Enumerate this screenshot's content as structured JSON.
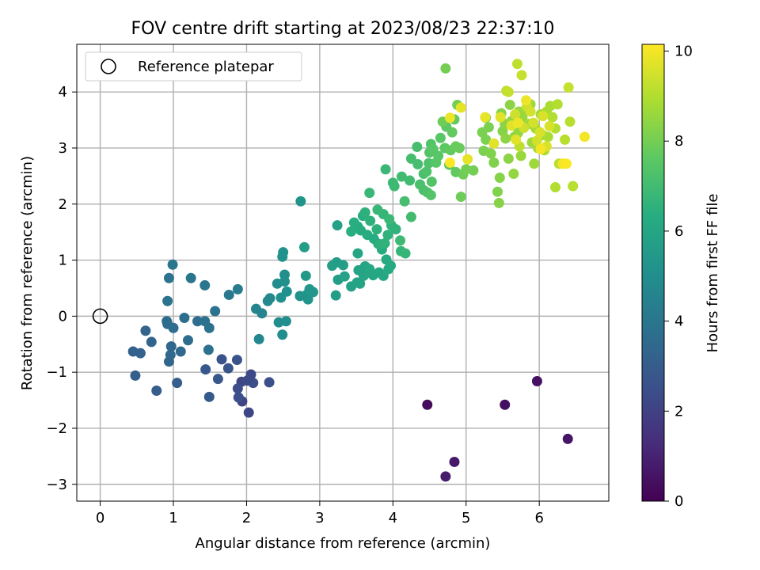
{
  "chart_data": {
    "type": "scatter",
    "title": "FOV centre drift starting at 2023/08/23 22:37:10",
    "xlabel": "Angular distance from reference (arcmin)",
    "ylabel": "Rotation from reference (arcmin)",
    "xlim": [
      -0.32,
      6.95
    ],
    "ylim": [
      -3.3,
      4.85
    ],
    "xticks": [
      0,
      1,
      2,
      3,
      4,
      5,
      6
    ],
    "yticks": [
      -3,
      -2,
      -1,
      0,
      1,
      2,
      3,
      4
    ],
    "grid": true,
    "legend": {
      "position": "top-left",
      "entries": [
        "Reference platepar"
      ]
    },
    "reference_point": {
      "x": 0,
      "y": 0
    },
    "colorbar": {
      "label": "Hours from first FF file",
      "colormap": "viridis",
      "range": [
        0,
        10.15
      ],
      "ticks": [
        0,
        2,
        4,
        6,
        8,
        10
      ]
    },
    "points": [
      [
        4.47,
        -1.58,
        0.3
      ],
      [
        5.53,
        -1.58,
        0.4
      ],
      [
        5.97,
        -1.16,
        0.5
      ],
      [
        6.39,
        -2.19,
        0.6
      ],
      [
        4.84,
        -2.6,
        0.7
      ],
      [
        4.72,
        -2.86,
        0.8
      ],
      [
        1.94,
        -1.52,
        2.1
      ],
      [
        2.03,
        -1.72,
        2.2
      ],
      [
        1.93,
        -1.17,
        2.2
      ],
      [
        2.06,
        -1.04,
        2.3
      ],
      [
        2.09,
        -1.19,
        2.4
      ],
      [
        2.01,
        -1.15,
        2.3
      ],
      [
        1.88,
        -1.29,
        2.4
      ],
      [
        1.89,
        -1.45,
        2.5
      ],
      [
        2.31,
        -1.18,
        2.5
      ],
      [
        1.66,
        -0.77,
        2.6
      ],
      [
        1.87,
        -0.78,
        2.6
      ],
      [
        1.75,
        -0.93,
        2.7
      ],
      [
        1.44,
        -0.95,
        2.8
      ],
      [
        1.61,
        -1.12,
        2.8
      ],
      [
        1.49,
        -1.44,
        2.9
      ],
      [
        0.77,
        -1.33,
        3.0
      ],
      [
        1.05,
        -1.19,
        3.0
      ],
      [
        0.48,
        -1.06,
        3.1
      ],
      [
        0.45,
        -0.63,
        3.2
      ],
      [
        0.55,
        -0.66,
        3.2
      ],
      [
        0.7,
        -0.46,
        3.3
      ],
      [
        0.62,
        -0.26,
        3.3
      ],
      [
        0.94,
        -0.81,
        3.4
      ],
      [
        0.97,
        -0.54,
        3.4
      ],
      [
        0.96,
        -0.69,
        3.5
      ],
      [
        1.1,
        -0.63,
        3.5
      ],
      [
        1.2,
        -0.43,
        3.6
      ],
      [
        0.91,
        -0.09,
        3.6
      ],
      [
        0.92,
        -0.14,
        3.6
      ],
      [
        1.0,
        -0.21,
        3.7
      ],
      [
        1.15,
        -0.03,
        3.7
      ],
      [
        1.33,
        -0.09,
        3.7
      ],
      [
        1.43,
        -0.09,
        3.8
      ],
      [
        1.49,
        -0.21,
        3.8
      ],
      [
        1.48,
        -0.6,
        3.8
      ],
      [
        1.57,
        0.09,
        3.9
      ],
      [
        0.92,
        0.27,
        3.9
      ],
      [
        0.94,
        0.68,
        3.9
      ],
      [
        0.99,
        0.92,
        4.0
      ],
      [
        1.24,
        0.68,
        4.0
      ],
      [
        1.43,
        0.55,
        4.0
      ],
      [
        1.76,
        0.38,
        4.1
      ],
      [
        1.88,
        0.48,
        4.2
      ],
      [
        2.13,
        0.13,
        4.6
      ],
      [
        2.21,
        0.05,
        4.6
      ],
      [
        2.17,
        -0.41,
        4.7
      ],
      [
        2.29,
        0.27,
        4.8
      ],
      [
        2.32,
        0.32,
        4.8
      ],
      [
        2.42,
        0.58,
        4.9
      ],
      [
        2.44,
        -0.11,
        4.9
      ],
      [
        2.49,
        -0.33,
        5.0
      ],
      [
        2.54,
        -0.09,
        5.0
      ],
      [
        2.52,
        0.74,
        5.0
      ],
      [
        2.52,
        0.62,
        5.1
      ],
      [
        2.55,
        0.44,
        5.1
      ],
      [
        2.47,
        0.33,
        5.1
      ],
      [
        2.49,
        1.06,
        5.2
      ],
      [
        2.5,
        1.14,
        5.2
      ],
      [
        2.73,
        0.36,
        5.2
      ],
      [
        2.82,
        0.38,
        5.3
      ],
      [
        2.84,
        0.3,
        5.3
      ],
      [
        2.86,
        0.48,
        5.4
      ],
      [
        2.91,
        0.43,
        5.4
      ],
      [
        2.81,
        0.72,
        5.5
      ],
      [
        2.74,
        2.05,
        5.3
      ],
      [
        2.79,
        1.23,
        5.6
      ],
      [
        3.22,
        0.37,
        5.6
      ],
      [
        3.23,
        0.96,
        5.6
      ],
      [
        3.17,
        0.9,
        5.7
      ],
      [
        3.25,
        0.65,
        5.7
      ],
      [
        3.24,
        1.62,
        5.8
      ],
      [
        3.32,
        0.91,
        5.7
      ],
      [
        3.34,
        0.71,
        5.8
      ],
      [
        3.43,
        0.53,
        5.8
      ],
      [
        3.51,
        0.6,
        5.9
      ],
      [
        3.53,
        0.82,
        5.9
      ],
      [
        3.55,
        0.58,
        5.9
      ],
      [
        3.52,
        1.12,
        6.0
      ],
      [
        3.6,
        0.72,
        6.0
      ],
      [
        3.62,
        0.89,
        6.0
      ],
      [
        3.68,
        0.84,
        6.1
      ],
      [
        3.73,
        0.73,
        6.1
      ],
      [
        3.81,
        0.78,
        6.1
      ],
      [
        3.87,
        0.72,
        6.1
      ],
      [
        3.91,
        1.01,
        6.2
      ],
      [
        3.94,
        0.84,
        6.2
      ],
      [
        3.97,
        0.9,
        6.2
      ],
      [
        3.85,
        1.19,
        6.2
      ],
      [
        3.8,
        1.29,
        6.3
      ],
      [
        3.74,
        1.38,
        6.3
      ],
      [
        3.65,
        1.45,
        6.3
      ],
      [
        3.56,
        1.53,
        6.3
      ],
      [
        3.52,
        1.6,
        6.3
      ],
      [
        3.43,
        1.51,
        6.4
      ],
      [
        3.47,
        1.67,
        6.4
      ],
      [
        3.59,
        1.79,
        6.4
      ],
      [
        3.62,
        1.85,
        6.5
      ],
      [
        3.69,
        1.7,
        6.5
      ],
      [
        3.78,
        1.55,
        6.5
      ],
      [
        3.83,
        1.28,
        6.5
      ],
      [
        3.89,
        1.3,
        6.6
      ],
      [
        3.93,
        1.45,
        6.6
      ],
      [
        3.98,
        1.62,
        6.6
      ],
      [
        4.04,
        1.55,
        6.6
      ],
      [
        4.11,
        1.16,
        6.7
      ],
      [
        4.17,
        1.12,
        6.7
      ],
      [
        3.87,
        1.82,
        6.7
      ],
      [
        3.95,
        1.73,
        6.8
      ],
      [
        3.68,
        2.2,
        6.8
      ],
      [
        3.9,
        2.62,
        6.8
      ],
      [
        3.79,
        1.9,
        6.8
      ],
      [
        4.1,
        1.35,
        6.9
      ],
      [
        4.0,
        2.38,
        6.9
      ],
      [
        4.02,
        2.32,
        6.9
      ],
      [
        4.12,
        2.49,
        7.0
      ],
      [
        4.23,
        2.42,
        7.0
      ],
      [
        4.25,
        1.77,
        7.0
      ],
      [
        4.16,
        2.05,
        7.1
      ],
      [
        4.25,
        2.81,
        7.1
      ],
      [
        4.33,
        3.02,
        7.1
      ],
      [
        4.34,
        2.71,
        7.1
      ],
      [
        4.37,
        2.35,
        7.2
      ],
      [
        4.42,
        2.54,
        7.2
      ],
      [
        4.42,
        2.25,
        7.2
      ],
      [
        4.46,
        2.58,
        7.3
      ],
      [
        4.49,
        2.73,
        7.3
      ],
      [
        4.47,
        2.21,
        7.3
      ],
      [
        4.5,
        2.92,
        7.4
      ],
      [
        4.52,
        3.07,
        7.4
      ],
      [
        4.52,
        2.16,
        7.4
      ],
      [
        4.53,
        2.4,
        7.4
      ],
      [
        4.59,
        2.74,
        7.5
      ],
      [
        4.55,
        2.98,
        7.5
      ],
      [
        4.62,
        2.86,
        7.5
      ],
      [
        4.65,
        3.18,
        7.5
      ],
      [
        4.73,
        3.38,
        7.6
      ],
      [
        4.71,
        3.0,
        7.6
      ],
      [
        4.77,
        2.7,
        7.6
      ],
      [
        4.79,
        2.96,
        7.7
      ],
      [
        4.86,
        2.57,
        7.7
      ],
      [
        4.81,
        3.28,
        7.7
      ],
      [
        4.84,
        3.51,
        7.7
      ],
      [
        4.86,
        3.03,
        7.8
      ],
      [
        4.91,
        3.0,
        7.8
      ],
      [
        4.93,
        2.13,
        7.9
      ],
      [
        4.96,
        2.53,
        7.9
      ],
      [
        4.68,
        3.47,
        7.9
      ],
      [
        4.72,
        4.42,
        8.0
      ],
      [
        4.88,
        3.77,
        8.0
      ],
      [
        5.0,
        2.62,
        8.0
      ],
      [
        5.1,
        2.6,
        8.0
      ],
      [
        5.24,
        2.95,
        8.1
      ],
      [
        5.27,
        3.15,
        8.1
      ],
      [
        5.31,
        3.37,
        8.1
      ],
      [
        5.22,
        3.28,
        8.1
      ],
      [
        5.27,
        3.54,
        8.2
      ],
      [
        5.34,
        2.9,
        8.2
      ],
      [
        5.38,
        2.74,
        8.2
      ],
      [
        5.43,
        2.22,
        8.2
      ],
      [
        5.45,
        2.02,
        8.3
      ],
      [
        5.46,
        2.47,
        8.3
      ],
      [
        5.48,
        3.62,
        8.3
      ],
      [
        5.5,
        3.3,
        8.3
      ],
      [
        5.53,
        3.43,
        8.4
      ],
      [
        5.54,
        3.17,
        8.4
      ],
      [
        5.58,
        2.81,
        8.4
      ],
      [
        5.6,
        3.77,
        8.4
      ],
      [
        5.62,
        3.48,
        8.5
      ],
      [
        5.65,
        2.54,
        8.5
      ],
      [
        5.66,
        3.2,
        8.5
      ],
      [
        5.71,
        3.27,
        8.5
      ],
      [
        5.72,
        3.65,
        8.6
      ],
      [
        5.75,
        2.86,
        8.6
      ],
      [
        5.77,
        3.55,
        8.6
      ],
      [
        5.81,
        3.68,
        8.6
      ],
      [
        5.86,
        3.43,
        8.7
      ],
      [
        5.88,
        3.78,
        8.7
      ],
      [
        5.9,
        3.1,
        8.7
      ],
      [
        5.93,
        2.72,
        8.7
      ],
      [
        5.95,
        3.35,
        8.8
      ],
      [
        5.98,
        3.0,
        8.8
      ],
      [
        6.02,
        3.6,
        8.8
      ],
      [
        6.05,
        3.23,
        8.8
      ],
      [
        6.07,
        2.96,
        8.9
      ],
      [
        6.1,
        3.65,
        8.9
      ],
      [
        6.12,
        3.2,
        8.9
      ],
      [
        6.15,
        3.75,
        8.9
      ],
      [
        6.18,
        3.55,
        9.0
      ],
      [
        6.22,
        3.35,
        9.0
      ],
      [
        6.25,
        3.78,
        9.0
      ],
      [
        6.22,
        2.3,
        9.0
      ],
      [
        6.27,
        2.72,
        9.1
      ],
      [
        6.35,
        3.15,
        9.1
      ],
      [
        6.42,
        3.47,
        9.1
      ],
      [
        6.46,
        2.32,
        9.1
      ],
      [
        5.73,
        3.03,
        9.2
      ],
      [
        5.55,
        4.02,
        9.2
      ],
      [
        5.7,
        4.5,
        9.2
      ],
      [
        5.76,
        4.3,
        9.3
      ],
      [
        6.4,
        4.08,
        9.3
      ],
      [
        5.58,
        4.0,
        9.3
      ],
      [
        5.67,
        3.6,
        9.4
      ],
      [
        5.79,
        3.36,
        9.4
      ],
      [
        5.83,
        3.74,
        9.4
      ],
      [
        5.88,
        3.65,
        9.5
      ],
      [
        5.92,
        3.45,
        9.5
      ],
      [
        5.97,
        3.13,
        9.5
      ],
      [
        6.01,
        3.28,
        9.6
      ],
      [
        6.05,
        3.57,
        9.6
      ],
      [
        6.1,
        3.03,
        9.6
      ],
      [
        6.14,
        3.39,
        9.6
      ],
      [
        5.68,
        3.15,
        9.7
      ],
      [
        5.62,
        3.4,
        9.7
      ],
      [
        5.47,
        3.55,
        9.7
      ],
      [
        5.38,
        3.08,
        9.7
      ],
      [
        5.26,
        3.55,
        9.8
      ],
      [
        5.02,
        2.8,
        9.8
      ],
      [
        4.93,
        3.72,
        9.8
      ],
      [
        4.78,
        3.54,
        9.9
      ],
      [
        5.82,
        3.85,
        9.9
      ],
      [
        5.71,
        3.45,
        9.9
      ],
      [
        6.02,
        2.98,
        10.0
      ],
      [
        6.32,
        2.72,
        10.0
      ],
      [
        6.62,
        3.2,
        10.0
      ],
      [
        6.37,
        2.72,
        10.1
      ],
      [
        4.78,
        2.74,
        10.1
      ]
    ]
  }
}
